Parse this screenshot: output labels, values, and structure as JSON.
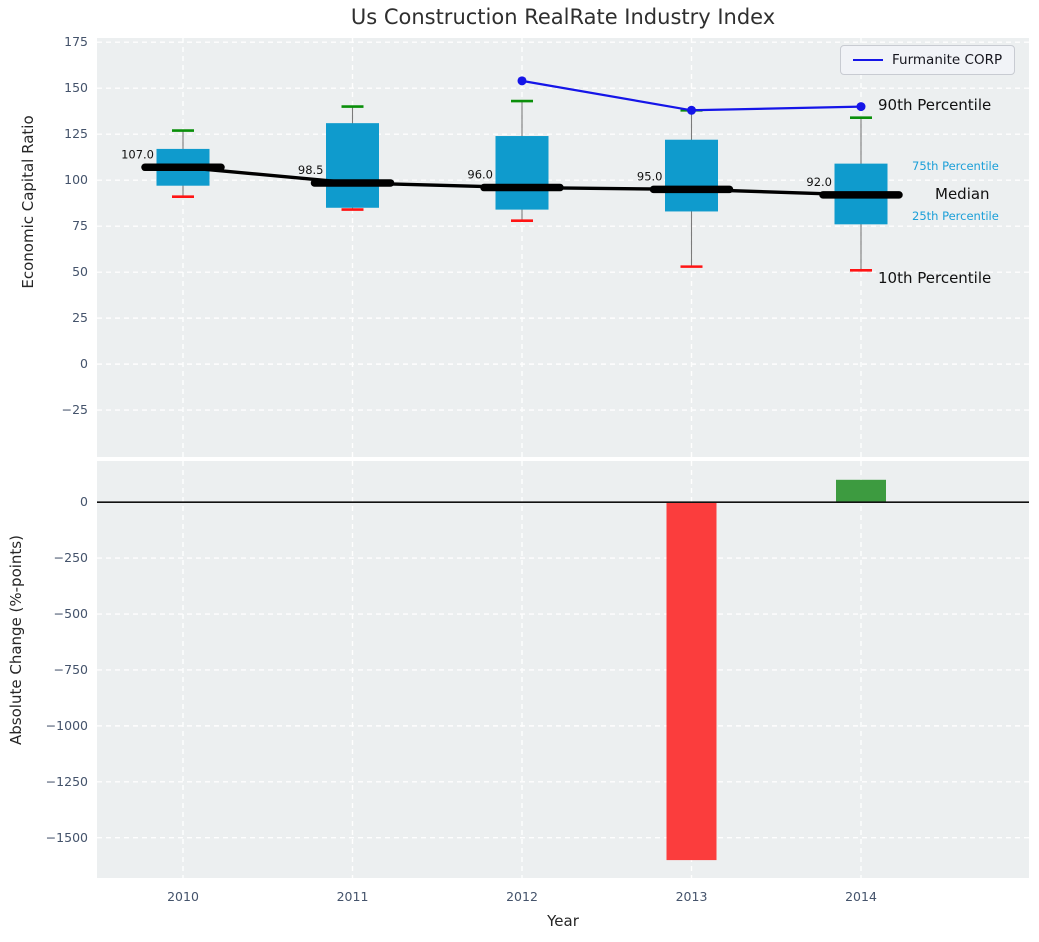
{
  "title": "Us Construction RealRate Industry Index",
  "legend": {
    "label": "Furmanite CORP"
  },
  "axes": {
    "top_ylabel": "Economic Capital Ratio",
    "bottom_ylabel": "Absolute Change (%-points)",
    "xlabel": "Year"
  },
  "annotations": {
    "p90": "90th Percentile",
    "p75": "75th Percentile",
    "median": "Median",
    "p25": "25th Percentile",
    "p10": "10th Percentile"
  },
  "colors": {
    "panel_bg": "#eceff0",
    "grid": "#ffffff",
    "box_fill": "#0f9bcd",
    "company_line": "#1515e8",
    "median_line": "#000000",
    "whisker": "#7a7a7a",
    "cap_high": "#0a8f0a",
    "cap_low": "#ff1414",
    "bar_negative": "#fb3d3d",
    "bar_positive": "#3d9b40",
    "percentile_label": "#1b9fd8",
    "tick_label": "#44536b",
    "zero_line": "#111111"
  },
  "chart_data": [
    {
      "type": "boxplot",
      "title": "Us Construction RealRate Industry Index",
      "ylabel": "Economic Capital Ratio",
      "categories": [
        "2010",
        "2011",
        "2012",
        "2013",
        "2014"
      ],
      "series": [
        {
          "name": "90th Percentile",
          "values": [
            127,
            140,
            143,
            138,
            134
          ]
        },
        {
          "name": "75th Percentile",
          "values": [
            117,
            131,
            124,
            122,
            109
          ]
        },
        {
          "name": "Median",
          "values": [
            107,
            98.5,
            96,
            95,
            92
          ]
        },
        {
          "name": "25th Percentile",
          "values": [
            97,
            85,
            84,
            83,
            76
          ]
        },
        {
          "name": "10th Percentile",
          "values": [
            91,
            84,
            78,
            53,
            51
          ]
        },
        {
          "name": "Furmanite CORP",
          "type": "line",
          "values": [
            null,
            null,
            154,
            138,
            140
          ]
        }
      ],
      "median_labels": [
        "107.0",
        "98.5",
        "96.0",
        "95.0",
        "92.0"
      ],
      "yticks": [
        175,
        150,
        125,
        100,
        75,
        50,
        25,
        0,
        -25
      ],
      "ylim": [
        -50.5,
        177.3
      ],
      "grid": true,
      "legend_position": "upper right"
    },
    {
      "type": "bar",
      "ylabel": "Absolute Change (%-points)",
      "xlabel": "Year",
      "categories": [
        "2010",
        "2011",
        "2012",
        "2013",
        "2014"
      ],
      "values": [
        0,
        0,
        0,
        -1600,
        100
      ],
      "yticks": [
        0,
        -250,
        -500,
        -750,
        -1000,
        -1250,
        -1500
      ],
      "ylim": [
        -1680,
        184
      ],
      "grid": true
    }
  ]
}
